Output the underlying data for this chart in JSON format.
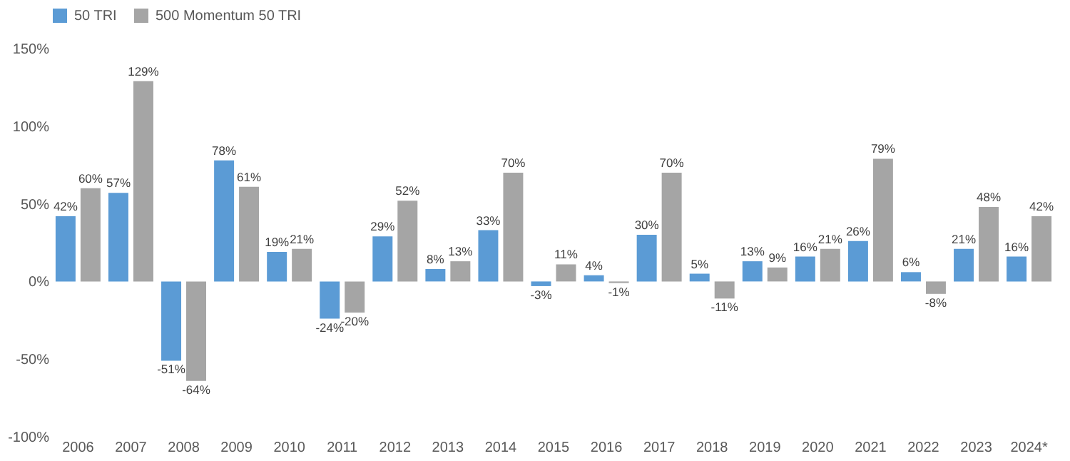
{
  "chart_data": {
    "type": "bar",
    "categories": [
      "2006",
      "2007",
      "2008",
      "2009",
      "2010",
      "2011",
      "2012",
      "2013",
      "2014",
      "2015",
      "2016",
      "2017",
      "2018",
      "2019",
      "2020",
      "2021",
      "2022",
      "2023",
      "2024*"
    ],
    "series": [
      {
        "name": "50 TRI",
        "color": "#5b9bd5",
        "values": [
          42,
          57,
          -51,
          78,
          19,
          -24,
          29,
          8,
          33,
          -3,
          4,
          30,
          5,
          13,
          16,
          26,
          6,
          21,
          16
        ],
        "value_labels": [
          "42%",
          "57%",
          "-51%",
          "78%",
          "19%",
          "-24%",
          "29%",
          "8%",
          "33%",
          "-3%",
          "4%",
          "30%",
          "5%",
          "13%",
          "16%",
          "26%",
          "6%",
          "21%",
          "16%"
        ]
      },
      {
        "name": "500 Momentum 50 TRI",
        "color": "#a5a5a5",
        "values": [
          60,
          129,
          -64,
          61,
          21,
          -20,
          52,
          13,
          70,
          11,
          -1,
          70,
          -11,
          9,
          21,
          79,
          -8,
          48,
          42
        ],
        "value_labels": [
          "60%",
          "129%",
          "-64%",
          "61%",
          "21%",
          "-20%",
          "52%",
          "13%",
          "70%",
          "11%",
          "-1%",
          "70%",
          "-11%",
          "9%",
          "21%",
          "79%",
          "-8%",
          "48%",
          "42%"
        ]
      }
    ],
    "ylim": [
      -100,
      150
    ],
    "yticks": [
      {
        "value": -100,
        "label": "-100%"
      },
      {
        "value": -50,
        "label": "-50%"
      },
      {
        "value": 0,
        "label": "0%"
      },
      {
        "value": 50,
        "label": "50%"
      },
      {
        "value": 100,
        "label": "100%"
      },
      {
        "value": 150,
        "label": "150%"
      }
    ],
    "legend": "top",
    "grid": false
  }
}
